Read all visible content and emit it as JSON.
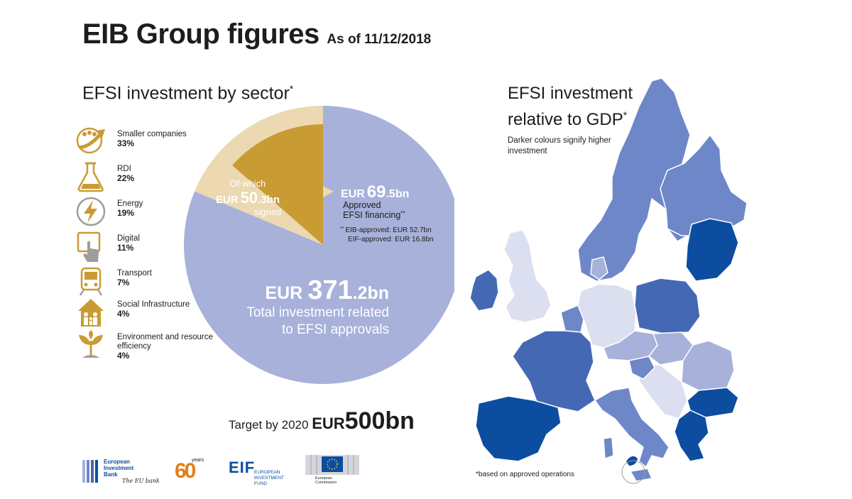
{
  "header": {
    "title": "EIB Group figures",
    "date": "As of 11/12/2018"
  },
  "sectors": {
    "heading": "EFSI investment by sector",
    "heading_mark": "*",
    "items": [
      {
        "label": "Smaller companies",
        "value": "33%",
        "icon": "growth-arrow-icon"
      },
      {
        "label": "RDI",
        "value": "22%",
        "icon": "flask-icon"
      },
      {
        "label": "Energy",
        "value": "19%",
        "icon": "lightning-icon"
      },
      {
        "label": "Digital",
        "value": "11%",
        "icon": "touchscreen-icon"
      },
      {
        "label": "Transport",
        "value": "7%",
        "icon": "train-icon"
      },
      {
        "label": "Social Infrastructure",
        "value": "4%",
        "icon": "family-house-icon"
      },
      {
        "label": "Environment and resource efficiency",
        "value": "4%",
        "icon": "plant-icon"
      }
    ]
  },
  "chart_data": {
    "type": "pie",
    "unit": "EUR bn",
    "slices": [
      {
        "name": "Total investment related to EFSI approvals",
        "value": 371.2,
        "color": "#a7b1da"
      },
      {
        "name": "Approved EFSI financing",
        "value": 69.5,
        "color": "#ecd9b1"
      },
      {
        "name": "signed",
        "value": 50.3,
        "color": "#c99b33"
      }
    ],
    "signed": {
      "line1": "Of which",
      "prefix": "EUR",
      "int": "50",
      "dec": ".3bn",
      "line3": "signed"
    },
    "approved": {
      "prefix": "EUR",
      "int": "69",
      "dec": ".5bn",
      "line1": "Approved",
      "line2": "EFSI financing",
      "line2_mark": "**",
      "note_mark": "**",
      "note1": "EIB-approved: EUR 52.7bn",
      "note2": "EIF-approved: EUR 16.8bn"
    },
    "total": {
      "prefix": "EUR",
      "int": "371",
      "dec": ".2bn",
      "line1": "Total investment related",
      "line2": "to EFSI approvals"
    }
  },
  "target": {
    "text": "Target by 2020",
    "eur": "EUR",
    "value": "500bn"
  },
  "map": {
    "heading_line1": "EFSI investment",
    "heading_line2": "relative to GDP",
    "heading_mark": "*",
    "note": "Darker colours signify higher investment",
    "footnote": "*based on approved operations",
    "colors": {
      "highest": "#0c4da0",
      "high": "#4468b4",
      "medium": "#6e87c8",
      "low": "#a7b1da",
      "lowest": "#dcdff0"
    }
  },
  "logos": {
    "eib": {
      "line1": "European",
      "line2": "Investment",
      "line3": "Bank",
      "tagline": "The EU bank"
    },
    "anniversary": {
      "number": "60",
      "word": "years"
    },
    "eif": {
      "letters": "EIF",
      "line1": "EUROPEAN",
      "line2": "INVESTMENT",
      "line3": "FUND"
    },
    "ec": {
      "line1": "European",
      "line2": "Commission"
    }
  }
}
